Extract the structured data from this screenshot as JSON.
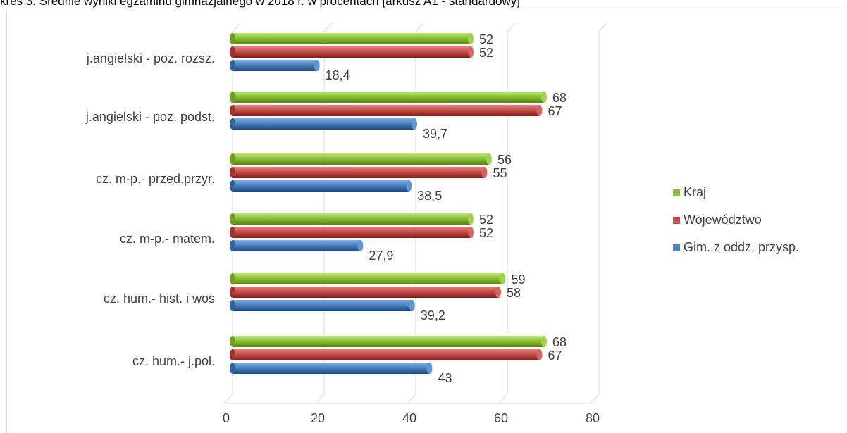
{
  "title": "kres 3. Średnie wyniki egzaminu gimnazjalnego w 2018 r. w procentach [arkusz A1 - standardowy]",
  "chart_data": {
    "type": "bar",
    "orientation": "horizontal",
    "style": "3d-cylinder",
    "categories": [
      "j.angielski - poz. rozsz.",
      "j.angielski - poz. podst.",
      "cz. m-p.- przed.przyr.",
      "cz. m-p.- matem.",
      "cz. hum.- hist. i wos",
      "cz. hum.- j.pol."
    ],
    "series": [
      {
        "name": "Kraj",
        "color": "#8cbd3f",
        "values": [
          52,
          68,
          56,
          52,
          59,
          68
        ],
        "labels": [
          "52",
          "68",
          "56",
          "52",
          "59",
          "68"
        ]
      },
      {
        "name": "Województwo",
        "color": "#c0504d",
        "values": [
          52,
          67,
          55,
          52,
          58,
          67
        ],
        "labels": [
          "52",
          "67",
          "55",
          "52",
          "58",
          "67"
        ]
      },
      {
        "name": "Gim. z oddz. przysp.",
        "color": "#4f81bd",
        "values": [
          18.4,
          39.7,
          38.5,
          27.9,
          39.2,
          43
        ],
        "labels": [
          "18,4",
          "39,7",
          "38,5",
          "27,9",
          "39,2",
          "43"
        ]
      }
    ],
    "xlim": [
      0,
      80
    ],
    "xticks": [
      "0",
      "20",
      "40",
      "60",
      "80"
    ],
    "grid": true,
    "legend_position": "right",
    "legend_order": [
      "Kraj",
      "Województwo",
      "Gim. z oddz. przysp."
    ]
  }
}
